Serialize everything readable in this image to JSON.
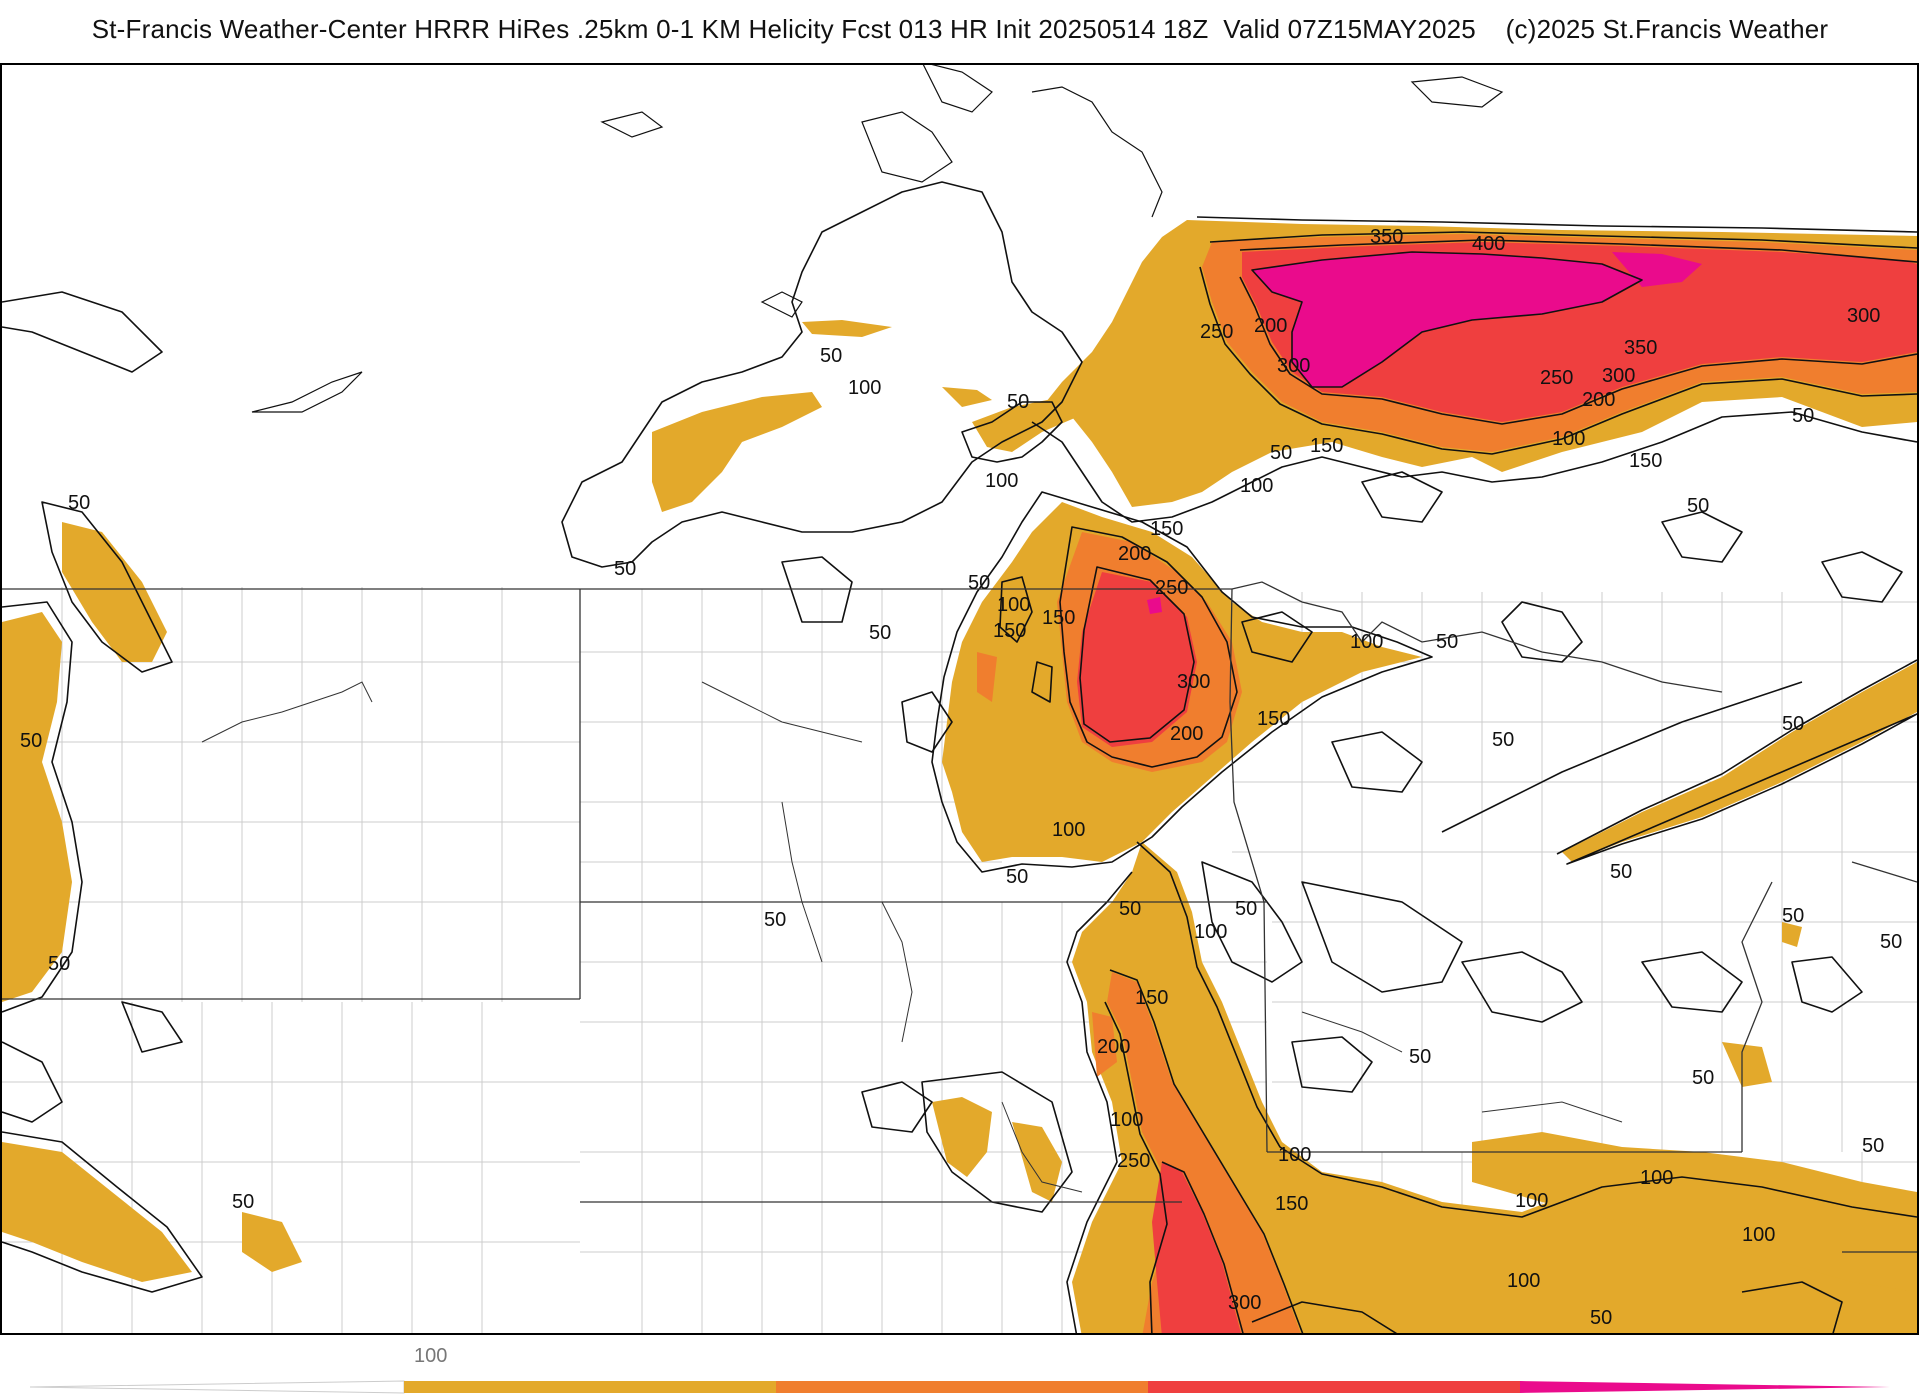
{
  "title": "St-Francis Weather-Center HRRR HiRes .25km 0-1 KM Helicity Fcst 013 HR Init 20250514 18Z  Valid 07Z15MAY2025    (c)2025 St.Francis Weather",
  "colors": {
    "level_50": "#ffffff",
    "level_100": "#e3a92b",
    "level_200": "#f07e2e",
    "level_300": "#ef3f3f",
    "level_400": "#ea0b8c",
    "contour": "#111111",
    "state_border": "#333333",
    "county_border": "#cccccc"
  },
  "contour_labels": [
    {
      "text": "350"
    },
    {
      "text": "400"
    },
    {
      "text": "250"
    },
    {
      "text": "200"
    },
    {
      "text": "300"
    },
    {
      "text": "300"
    },
    {
      "text": "350"
    },
    {
      "text": "250"
    },
    {
      "text": "300"
    },
    {
      "text": "200"
    },
    {
      "text": "50"
    },
    {
      "text": "100"
    },
    {
      "text": "50"
    },
    {
      "text": "50"
    },
    {
      "text": "100"
    },
    {
      "text": "50"
    },
    {
      "text": "150"
    },
    {
      "text": "100"
    },
    {
      "text": "150"
    },
    {
      "text": "50"
    },
    {
      "text": "100"
    },
    {
      "text": "150"
    },
    {
      "text": "200"
    },
    {
      "text": "250"
    },
    {
      "text": "100"
    },
    {
      "text": "150"
    },
    {
      "text": "50"
    },
    {
      "text": "150"
    },
    {
      "text": "300"
    },
    {
      "text": "200"
    },
    {
      "text": "150"
    },
    {
      "text": "100"
    },
    {
      "text": "50"
    },
    {
      "text": "100"
    },
    {
      "text": "50"
    },
    {
      "text": "50"
    },
    {
      "text": "50"
    },
    {
      "text": "50"
    },
    {
      "text": "50"
    },
    {
      "text": "50"
    },
    {
      "text": "50"
    },
    {
      "text": "50"
    },
    {
      "text": "50"
    },
    {
      "text": "50"
    },
    {
      "text": "100"
    },
    {
      "text": "150"
    },
    {
      "text": "200"
    },
    {
      "text": "100"
    },
    {
      "text": "250"
    },
    {
      "text": "100"
    },
    {
      "text": "150"
    },
    {
      "text": "300"
    },
    {
      "text": "100"
    },
    {
      "text": "100"
    },
    {
      "text": "100"
    },
    {
      "text": "100"
    },
    {
      "text": "50"
    },
    {
      "text": "50"
    },
    {
      "text": "50"
    },
    {
      "text": "50"
    },
    {
      "text": "50"
    },
    {
      "text": "50"
    },
    {
      "text": "50"
    },
    {
      "text": "50"
    },
    {
      "text": "50"
    }
  ],
  "legend": {
    "tick_label": "100",
    "colors": [
      "#e3a92b",
      "#f07e2e",
      "#ef3f3f",
      "#ea0b8c"
    ]
  }
}
